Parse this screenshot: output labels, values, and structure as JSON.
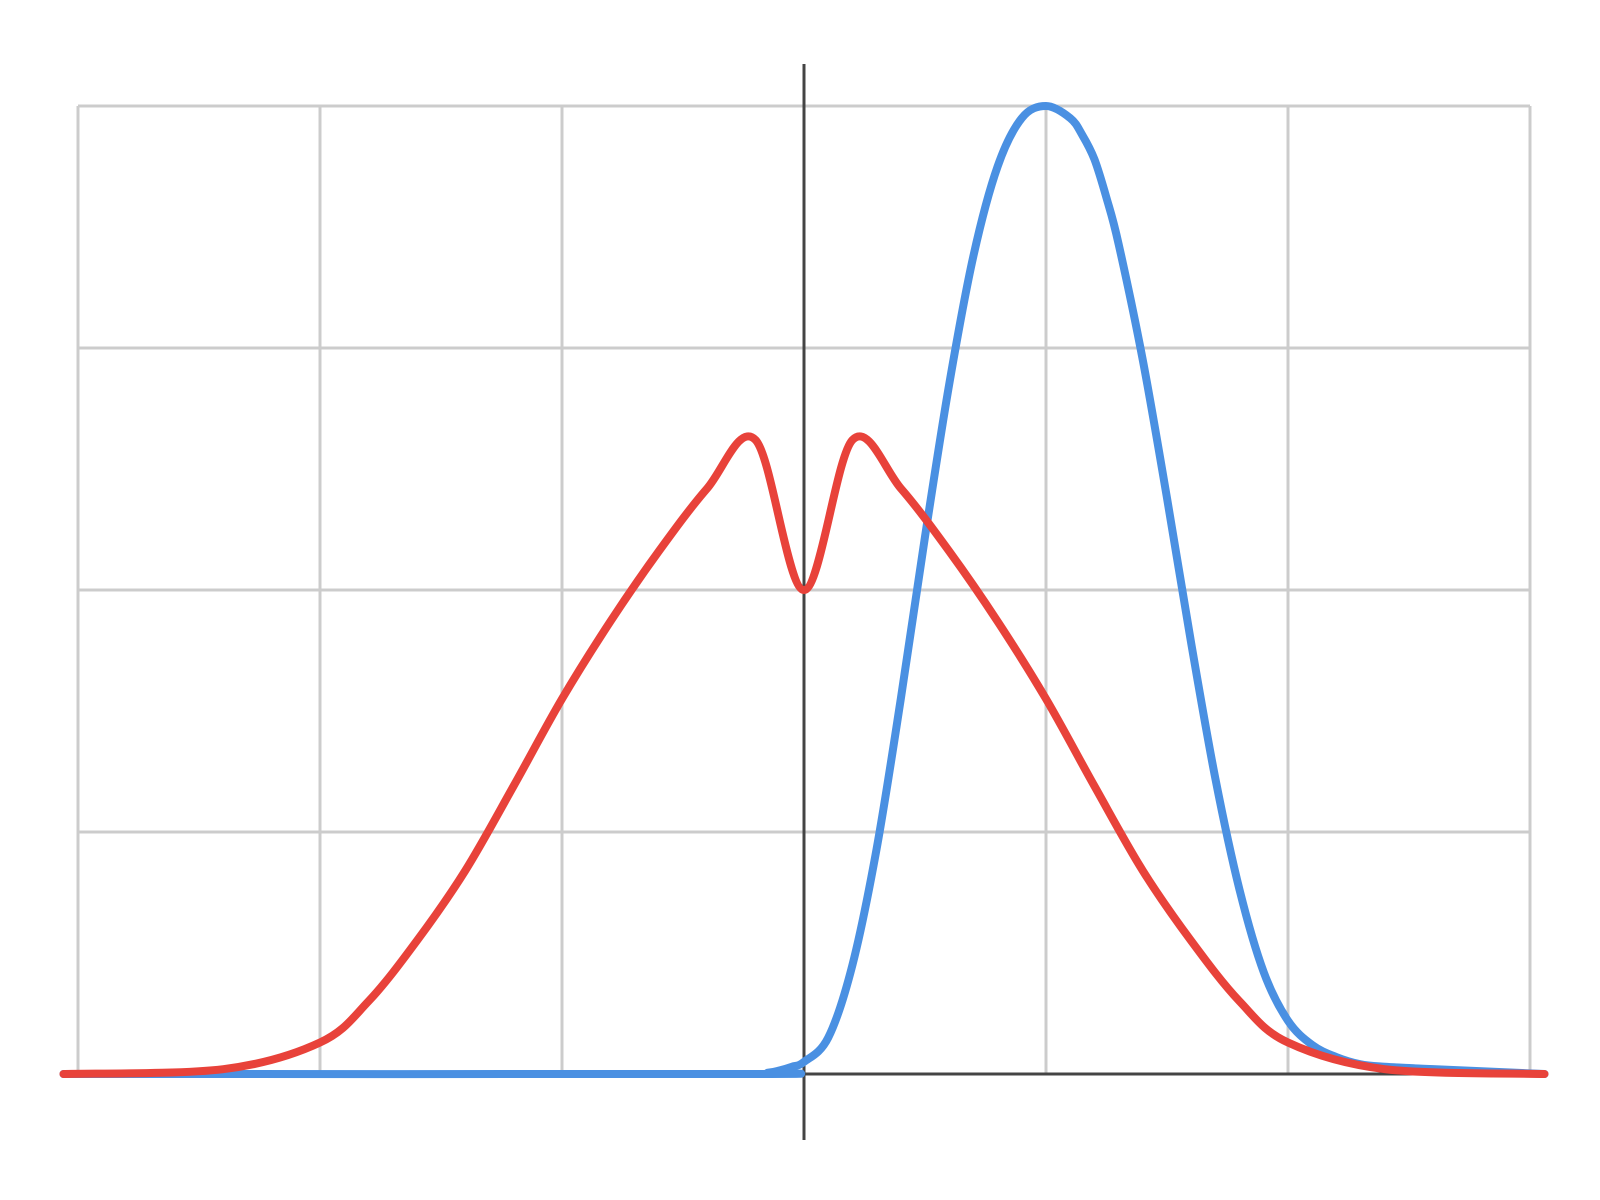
{
  "chart_data": {
    "type": "line",
    "title": "",
    "xlabel": "",
    "ylabel": "",
    "xlim": [
      -3,
      3
    ],
    "ylim": [
      0,
      4
    ],
    "x_gridlines": [
      -3,
      -2,
      -1,
      0,
      1,
      2,
      3
    ],
    "y_gridlines": [
      0,
      1,
      2,
      3,
      4
    ],
    "grid": true,
    "legend": "none",
    "series": [
      {
        "color": "#4a90e2",
        "x": [
          -3.06,
          -0.25,
          -0.15,
          -0.1,
          -0.05,
          0,
          0.1,
          0.2,
          0.3,
          0.4,
          0.5,
          0.6,
          0.7,
          0.8,
          0.9,
          1.0,
          1.1,
          1.15,
          1.2,
          1.25,
          1.3,
          1.4,
          1.5,
          1.6,
          1.7,
          1.8,
          1.9,
          2.0,
          2.1,
          2.2,
          2.3,
          2.4,
          2.5,
          2.6,
          3.06
        ],
        "y": [
          0.0,
          0.0,
          0.005,
          0.015,
          0.03,
          0.05,
          0.15,
          0.45,
          0.93,
          1.55,
          2.22,
          2.85,
          3.38,
          3.75,
          3.95,
          4.0,
          3.95,
          3.88,
          3.78,
          3.62,
          3.43,
          2.95,
          2.38,
          1.78,
          1.22,
          0.76,
          0.42,
          0.22,
          0.12,
          0.07,
          0.04,
          0.03,
          0.025,
          0.02,
          0.0
        ]
      },
      {
        "color": "#e8423a",
        "x": [
          -3.06,
          -2.4,
          -2.0,
          -1.8,
          -1.6,
          -1.4,
          -1.2,
          -1.0,
          -0.8,
          -0.6,
          -0.4,
          -0.2,
          0.0,
          0.2,
          0.4,
          0.6,
          0.8,
          1.0,
          1.2,
          1.4,
          1.6,
          1.8,
          2.0,
          2.4,
          3.06
        ],
        "y": [
          0.0,
          0.02,
          0.13,
          0.3,
          0.55,
          0.84,
          1.19,
          1.55,
          1.87,
          2.16,
          2.42,
          2.62,
          2.0,
          2.62,
          2.42,
          2.16,
          1.87,
          1.55,
          1.19,
          0.84,
          0.55,
          0.3,
          0.13,
          0.02,
          0.0
        ]
      }
    ]
  }
}
